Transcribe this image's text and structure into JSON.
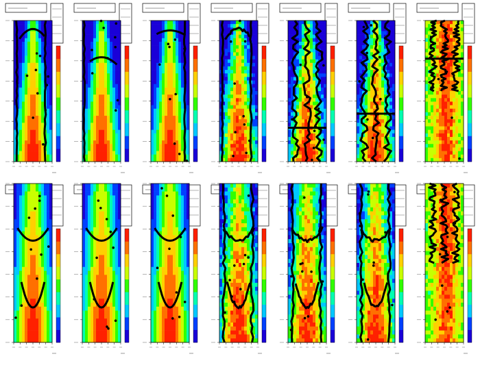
{
  "figure": {
    "footer_text": "",
    "background": "#ffffff",
    "colormap": [
      "#1a00d8",
      "#0040ff",
      "#00c8ff",
      "#00ffb0",
      "#30ff00",
      "#c8ff00",
      "#ffd000",
      "#ff7000",
      "#ff2000"
    ]
  },
  "chart_data": [
    {
      "type": "heatmap",
      "row": 0,
      "col": 0,
      "overlay": "contour",
      "trace": "vertical-band"
    },
    {
      "type": "heatmap",
      "row": 0,
      "col": 1,
      "overlay": "contour",
      "trace": "horizontal-hump"
    },
    {
      "type": "heatmap",
      "row": 0,
      "col": 2,
      "overlay": "contour",
      "trace": "top-band"
    },
    {
      "type": "heatmap",
      "row": 0,
      "col": 3,
      "overlay": "contour",
      "trace": "vertical-band"
    },
    {
      "type": "heatmap",
      "row": 0,
      "col": 4,
      "overlay": "contour",
      "trace": "noisy-vertical",
      "hline": 0.76
    },
    {
      "type": "heatmap",
      "row": 0,
      "col": 5,
      "overlay": "contour",
      "trace": "noisy-vertical",
      "hline": 0.66
    },
    {
      "type": "heatmap",
      "row": 0,
      "col": 6,
      "overlay": "contour",
      "trace": "top-cluster",
      "hline": 0.27
    },
    {
      "type": "heatmap",
      "row": 1,
      "col": 0,
      "overlay": "contour",
      "trace": "double-arc"
    },
    {
      "type": "heatmap",
      "row": 1,
      "col": 1,
      "overlay": "contour",
      "trace": "double-arc"
    },
    {
      "type": "heatmap",
      "row": 1,
      "col": 2,
      "overlay": "contour",
      "trace": "double-arc"
    },
    {
      "type": "heatmap",
      "row": 1,
      "col": 3,
      "overlay": "contour",
      "trace": "double-arc-noisy"
    },
    {
      "type": "heatmap",
      "row": 1,
      "col": 4,
      "overlay": "contour",
      "trace": "double-arc-noisy"
    },
    {
      "type": "heatmap",
      "row": 1,
      "col": 5,
      "overlay": "contour",
      "trace": "double-arc-noisy"
    },
    {
      "type": "heatmap",
      "row": 1,
      "col": 6,
      "overlay": "contour",
      "trace": "top-cluster"
    }
  ]
}
